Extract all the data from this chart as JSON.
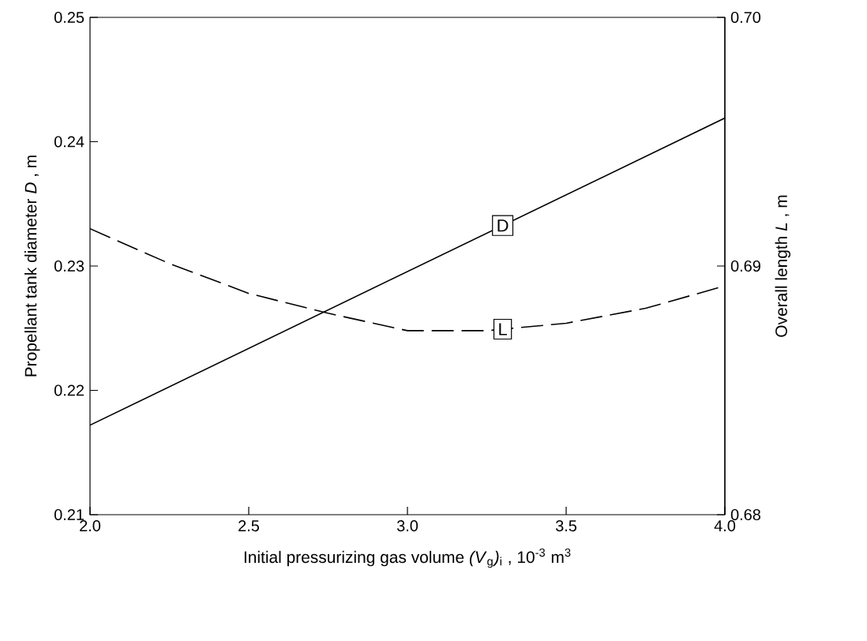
{
  "chart_data": {
    "type": "line",
    "xlabel": "Initial  pressurizing gas volume *(V*$_{g}$*)*$_{i}$  , 10$^{-3}$ m$^{3}$",
    "ylabel": "Propellant tank diameter *D* , m",
    "y2label": "Overall length *L* ,  m",
    "xlim": [
      2.0,
      4.0
    ],
    "xticks": [
      {
        "value": 2.0,
        "label": "2.0"
      },
      {
        "value": 2.5,
        "label": "2.5"
      },
      {
        "value": 3.0,
        "label": "3.0"
      },
      {
        "value": 3.5,
        "label": "3.5"
      },
      {
        "value": 4.0,
        "label": "4.0"
      }
    ],
    "ylim": [
      0.21,
      0.25
    ],
    "yticks": [
      0.21,
      0.22,
      0.23,
      0.24,
      0.25
    ],
    "y2lim": [
      0.68,
      0.7
    ],
    "y2ticks": [
      0.68,
      0.69,
      {
        "value": 0.7,
        "label": "0.70"
      }
    ],
    "series": [
      {
        "name": "D",
        "color": "#000000",
        "line_style": "solid",
        "x": [
          2.0,
          4.0
        ],
        "values": [
          0.2172,
          0.2419
        ]
      },
      {
        "name": "L",
        "color": "#000000",
        "line_style": "dashed",
        "axis": "y2",
        "x": [
          2.0,
          2.25,
          2.5,
          2.75,
          3.0,
          3.25,
          3.5,
          3.75,
          4.0
        ],
        "values": [
          0.6915,
          0.6901,
          0.6889,
          0.6881,
          0.6874,
          0.6874,
          0.6877,
          0.6883,
          0.6892
        ]
      }
    ]
  }
}
